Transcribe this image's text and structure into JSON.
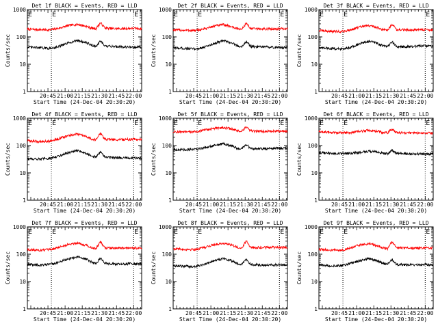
{
  "chart_data": [
    {
      "type": "line",
      "title": "Det 1f BLACK = Events, RED = LLD",
      "xlabel": "Start Time (24-Dec-04 20:30:20)",
      "ylabel": "Counts/sec",
      "yscale": "log",
      "ylim": [
        1,
        1000
      ],
      "y_ticks": [
        "1",
        "10",
        "100",
        "1000"
      ],
      "x_ticks": [
        "20:45",
        "21:00",
        "21:15",
        "21:30",
        "21:45",
        "22:00"
      ],
      "x_range_min": [
        0,
        100
      ],
      "markers": [
        21,
        93
      ],
      "marker_labels": {
        "left": "E",
        "right": "E"
      },
      "series": [
        {
          "color": "#ff0000",
          "base": 200,
          "x": [
            0,
            10,
            20,
            28,
            36,
            44,
            52,
            56,
            60,
            64,
            68,
            76,
            84,
            92,
            100
          ],
          "y": [
            190,
            185,
            180,
            210,
            260,
            290,
            240,
            210,
            200,
            330,
            210,
            200,
            200,
            205,
            200
          ]
        },
        {
          "color": "#000000",
          "base": 45,
          "x": [
            0,
            10,
            20,
            28,
            36,
            44,
            52,
            56,
            60,
            64,
            68,
            76,
            84,
            92,
            100
          ],
          "y": [
            42,
            40,
            38,
            45,
            60,
            75,
            60,
            50,
            45,
            70,
            45,
            45,
            43,
            42,
            42
          ]
        }
      ]
    },
    {
      "type": "line",
      "title": "Det 2f BLACK = Events, RED = LLD",
      "xlabel": "Start Time (24-Dec-04 20:30:20)",
      "ylabel": "Counts/sec",
      "yscale": "log",
      "ylim": [
        1,
        1000
      ],
      "y_ticks": [
        "1",
        "10",
        "100",
        "1000"
      ],
      "x_ticks": [
        "20:45",
        "21:00",
        "21:15",
        "21:30",
        "21:45",
        "22:00"
      ],
      "x_range_min": [
        0,
        100
      ],
      "markers": [
        21,
        93
      ],
      "marker_labels": {
        "left": "E",
        "right": "E"
      },
      "series": [
        {
          "color": "#ff0000",
          "base": 200,
          "x": [
            0,
            10,
            20,
            28,
            36,
            44,
            52,
            56,
            60,
            64,
            68,
            76,
            84,
            92,
            100
          ],
          "y": [
            180,
            175,
            170,
            200,
            250,
            280,
            230,
            200,
            190,
            320,
            200,
            195,
            195,
            200,
            195
          ]
        },
        {
          "color": "#000000",
          "base": 42,
          "x": [
            0,
            10,
            20,
            28,
            36,
            44,
            52,
            56,
            60,
            64,
            68,
            76,
            84,
            92,
            100
          ],
          "y": [
            40,
            38,
            36,
            43,
            58,
            72,
            58,
            48,
            44,
            68,
            44,
            43,
            42,
            41,
            41
          ]
        }
      ]
    },
    {
      "type": "line",
      "title": "Det 3f BLACK = Events, RED = LLD",
      "xlabel": "Start Time (24-Dec-04 20:30:20)",
      "ylabel": "Counts/sec",
      "yscale": "log",
      "ylim": [
        1,
        1000
      ],
      "y_ticks": [
        "1",
        "10",
        "100",
        "1000"
      ],
      "x_ticks": [
        "20:45",
        "21:00",
        "21:15",
        "21:30",
        "21:45",
        "22:00"
      ],
      "x_range_min": [
        0,
        100
      ],
      "markers": [
        21,
        93
      ],
      "marker_labels": {
        "left": "E",
        "right": "E"
      },
      "series": [
        {
          "color": "#ff0000",
          "base": 180,
          "x": [
            0,
            10,
            20,
            28,
            36,
            44,
            52,
            56,
            60,
            64,
            68,
            76,
            84,
            92,
            100
          ],
          "y": [
            170,
            160,
            155,
            185,
            230,
            260,
            215,
            185,
            175,
            300,
            185,
            180,
            180,
            185,
            180
          ]
        },
        {
          "color": "#000000",
          "base": 42,
          "x": [
            0,
            10,
            20,
            28,
            36,
            44,
            52,
            56,
            60,
            64,
            68,
            76,
            84,
            92,
            100
          ],
          "y": [
            40,
            38,
            36,
            43,
            56,
            70,
            56,
            47,
            43,
            66,
            44,
            43,
            45,
            48,
            45
          ]
        }
      ]
    },
    {
      "type": "line",
      "title": "Det 4f BLACK = Events, RED = LLD",
      "xlabel": "Start Time (24-Dec-04 20:30:20)",
      "ylabel": "Counts/sec",
      "yscale": "log",
      "ylim": [
        1,
        1000
      ],
      "y_ticks": [
        "1",
        "10",
        "100",
        "1000"
      ],
      "x_ticks": [
        "20:45",
        "21:00",
        "21:15",
        "21:30",
        "21:45",
        "22:00"
      ],
      "x_range_min": [
        0,
        100
      ],
      "markers": [
        21,
        93
      ],
      "marker_labels": {
        "left": "E",
        "right": "E"
      },
      "series": [
        {
          "color": "#ff0000",
          "base": 160,
          "x": [
            0,
            10,
            20,
            28,
            36,
            44,
            52,
            56,
            60,
            64,
            68,
            76,
            84,
            92,
            100
          ],
          "y": [
            150,
            140,
            145,
            180,
            230,
            260,
            210,
            175,
            160,
            280,
            170,
            165,
            165,
            170,
            165
          ]
        },
        {
          "color": "#000000",
          "base": 35,
          "x": [
            0,
            10,
            20,
            28,
            36,
            44,
            52,
            56,
            60,
            64,
            68,
            76,
            84,
            92,
            100
          ],
          "y": [
            33,
            32,
            34,
            42,
            55,
            65,
            52,
            42,
            38,
            58,
            38,
            36,
            35,
            35,
            34
          ]
        }
      ]
    },
    {
      "type": "line",
      "title": "Det 5f BLACK = Events, RED = LLD",
      "xlabel": "Start Time (24-Dec-04 20:30:20)",
      "ylabel": "Counts/sec",
      "yscale": "log",
      "ylim": [
        1,
        1000
      ],
      "y_ticks": [
        "1",
        "10",
        "100",
        "1000"
      ],
      "x_ticks": [
        "20:45",
        "21:00",
        "21:15",
        "21:30",
        "21:45",
        "22:00"
      ],
      "x_range_min": [
        0,
        100
      ],
      "markers": [
        21,
        93
      ],
      "marker_labels": {
        "left": "E",
        "right": "E"
      },
      "series": [
        {
          "color": "#ff0000",
          "base": 330,
          "x": [
            0,
            10,
            20,
            28,
            36,
            44,
            52,
            56,
            60,
            64,
            68,
            76,
            84,
            92,
            100
          ],
          "y": [
            320,
            310,
            320,
            370,
            420,
            460,
            400,
            350,
            330,
            480,
            340,
            330,
            330,
            340,
            335
          ]
        },
        {
          "color": "#000000",
          "base": 75,
          "x": [
            0,
            10,
            20,
            28,
            36,
            44,
            52,
            56,
            60,
            64,
            68,
            76,
            84,
            92,
            100
          ],
          "y": [
            72,
            70,
            72,
            85,
            100,
            115,
            95,
            80,
            75,
            110,
            78,
            76,
            78,
            80,
            78
          ]
        }
      ]
    },
    {
      "type": "line",
      "title": "Det 6f BLACK = Events, RED = LLD",
      "xlabel": "Start Time (24-Dec-04 20:30:20)",
      "ylabel": "Counts/sec",
      "yscale": "log",
      "ylim": [
        1,
        1000
      ],
      "y_ticks": [
        "1",
        "10",
        "100",
        "1000"
      ],
      "x_ticks": [
        "20:45",
        "21:00",
        "21:15",
        "21:30",
        "21:45",
        "22:00"
      ],
      "x_range_min": [
        0,
        100
      ],
      "markers": [
        21,
        93
      ],
      "marker_labels": {
        "left": "E",
        "right": "E"
      },
      "series": [
        {
          "color": "#ff0000",
          "base": 300,
          "x": [
            0,
            10,
            20,
            28,
            36,
            44,
            52,
            56,
            60,
            64,
            68,
            76,
            84,
            92,
            100
          ],
          "y": [
            320,
            300,
            290,
            300,
            330,
            360,
            330,
            300,
            290,
            400,
            300,
            290,
            290,
            290,
            285
          ]
        },
        {
          "color": "#000000",
          "base": 52,
          "x": [
            0,
            10,
            20,
            28,
            36,
            44,
            52,
            56,
            60,
            64,
            68,
            76,
            84,
            92,
            100
          ],
          "y": [
            55,
            52,
            50,
            52,
            56,
            62,
            56,
            52,
            50,
            68,
            52,
            50,
            50,
            50,
            49
          ]
        }
      ]
    },
    {
      "type": "line",
      "title": "Det 7f BLACK = Events, RED = LLD",
      "xlabel": "Start Time (24-Dec-04 20:30:20)",
      "ylabel": "Counts/sec",
      "yscale": "log",
      "ylim": [
        1,
        1000
      ],
      "y_ticks": [
        "1",
        "10",
        "100",
        "1000"
      ],
      "x_ticks": [
        "20:45",
        "21:00",
        "21:15",
        "21:30",
        "21:45",
        "22:00"
      ],
      "x_range_min": [
        0,
        100
      ],
      "markers": [
        21,
        93
      ],
      "marker_labels": {
        "left": "E",
        "right": "E"
      },
      "series": [
        {
          "color": "#ff0000",
          "base": 160,
          "x": [
            0,
            10,
            20,
            28,
            36,
            44,
            52,
            56,
            60,
            64,
            68,
            76,
            84,
            92,
            100
          ],
          "y": [
            150,
            140,
            145,
            180,
            230,
            260,
            210,
            175,
            160,
            280,
            170,
            165,
            165,
            170,
            165
          ]
        },
        {
          "color": "#000000",
          "base": 45,
          "x": [
            0,
            10,
            20,
            28,
            36,
            44,
            52,
            56,
            60,
            64,
            68,
            76,
            84,
            92,
            100
          ],
          "y": [
            42,
            40,
            42,
            52,
            68,
            80,
            65,
            52,
            46,
            72,
            46,
            44,
            44,
            45,
            44
          ]
        }
      ]
    },
    {
      "type": "line",
      "title": "Det 8f BLACK = Events, RED = LLD",
      "xlabel": "Start Time (24-Dec-04 20:30:20)",
      "ylabel": "Counts/sec",
      "yscale": "log",
      "ylim": [
        1,
        1000
      ],
      "y_ticks": [
        "1",
        "10",
        "100",
        "1000"
      ],
      "x_ticks": [
        "20:45",
        "21:00",
        "21:15",
        "21:30",
        "21:45",
        "22:00"
      ],
      "x_range_min": [
        0,
        100
      ],
      "markers": [
        21,
        93
      ],
      "marker_labels": {
        "left": "E",
        "right": "E"
      },
      "series": [
        {
          "color": "#ff0000",
          "base": 170,
          "x": [
            0,
            10,
            20,
            28,
            36,
            44,
            52,
            56,
            60,
            64,
            68,
            76,
            84,
            92,
            100
          ],
          "y": [
            160,
            150,
            150,
            180,
            225,
            255,
            210,
            180,
            170,
            300,
            180,
            175,
            175,
            180,
            175
          ]
        },
        {
          "color": "#000000",
          "base": 40,
          "x": [
            0,
            10,
            20,
            28,
            36,
            44,
            52,
            56,
            60,
            64,
            68,
            76,
            84,
            92,
            100
          ],
          "y": [
            38,
            36,
            36,
            44,
            58,
            70,
            56,
            46,
            42,
            66,
            42,
            40,
            40,
            41,
            40
          ]
        }
      ]
    },
    {
      "type": "line",
      "title": "Det 9f BLACK = Events, RED = LLD",
      "xlabel": "Start Time (24-Dec-04 20:30:20)",
      "ylabel": "Counts/sec",
      "yscale": "log",
      "ylim": [
        1,
        1000
      ],
      "y_ticks": [
        "1",
        "10",
        "100",
        "1000"
      ],
      "x_ticks": [
        "20:45",
        "21:00",
        "21:15",
        "21:30",
        "21:45",
        "22:00"
      ],
      "x_range_min": [
        0,
        100
      ],
      "markers": [
        21,
        93
      ],
      "marker_labels": {
        "left": "E",
        "right": "E"
      },
      "series": [
        {
          "color": "#ff0000",
          "base": 160,
          "x": [
            0,
            10,
            20,
            28,
            36,
            44,
            52,
            56,
            60,
            64,
            68,
            76,
            84,
            92,
            100
          ],
          "y": [
            150,
            140,
            140,
            170,
            215,
            245,
            200,
            170,
            160,
            290,
            170,
            165,
            165,
            170,
            165
          ]
        },
        {
          "color": "#000000",
          "base": 42,
          "x": [
            0,
            10,
            20,
            28,
            36,
            44,
            52,
            56,
            60,
            64,
            68,
            76,
            84,
            92,
            100
          ],
          "y": [
            40,
            38,
            38,
            46,
            58,
            68,
            56,
            46,
            42,
            64,
            42,
            41,
            41,
            42,
            41
          ]
        }
      ]
    }
  ]
}
